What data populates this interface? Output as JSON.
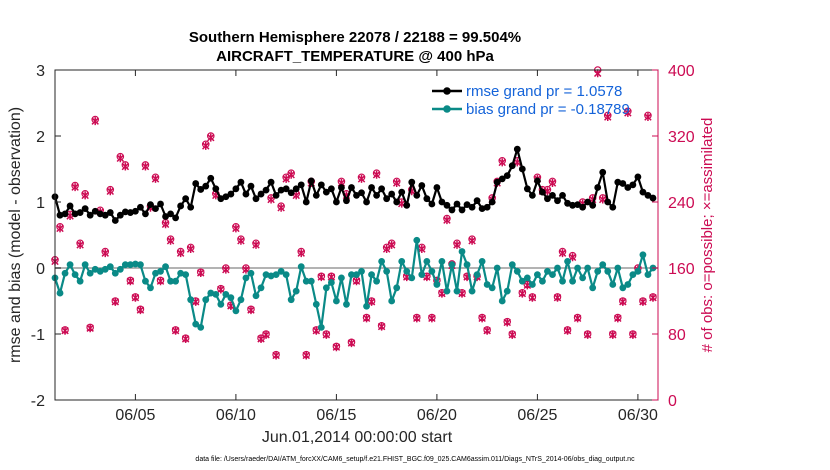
{
  "chart_data": {
    "type": "line",
    "title_line1": "Southern Hemisphere 22078 / 22188 = 99.504%",
    "title_line2": "AIRCRAFT_TEMPERATURE @ 400 hPa",
    "xlabel": "Jun.01,2014 00:00:00 start",
    "ylabel": "rmse and bias (model - observation)",
    "y2label": "# of obs: o=possible; ×=assimilated",
    "xlim": [
      1,
      31
    ],
    "ylim": [
      -2,
      3
    ],
    "y2lim": [
      0,
      400
    ],
    "x_ticks": [
      5,
      10,
      15,
      20,
      25,
      30
    ],
    "x_tick_labels": [
      "06/05",
      "06/10",
      "06/15",
      "06/20",
      "06/25",
      "06/30"
    ],
    "y_ticks": [
      -2,
      -1,
      0,
      1,
      2,
      3
    ],
    "y_tick_labels": [
      "-2",
      "-1",
      "0",
      "1",
      "2",
      "3"
    ],
    "y2_ticks": [
      0,
      80,
      160,
      240,
      320,
      400
    ],
    "y2_tick_labels": [
      "0",
      "80",
      "160",
      "240",
      "320",
      "400"
    ],
    "footnote": "data file: /Users/raeder/DAI/ATM_forcXX/CAM6_setup/f.e21.FHIST_BGC.f09_025.CAM6assim.011/Diags_NTrS_2014-06/obs_diag_output.nc",
    "series": [
      {
        "name": "rmse grand pr = 1.0578",
        "color": "#000000",
        "x": [
          1.0,
          1.25,
          1.5,
          1.75,
          2.0,
          2.25,
          2.5,
          2.75,
          3.0,
          3.25,
          3.5,
          3.75,
          4.0,
          4.25,
          4.5,
          4.75,
          5.0,
          5.25,
          5.5,
          5.75,
          6.0,
          6.25,
          6.5,
          6.75,
          7.0,
          7.25,
          7.5,
          7.75,
          8.0,
          8.25,
          8.5,
          8.75,
          9.0,
          9.25,
          9.5,
          9.75,
          10.0,
          10.25,
          10.5,
          10.75,
          11.0,
          11.25,
          11.5,
          11.75,
          12.0,
          12.25,
          12.5,
          12.75,
          13.0,
          13.25,
          13.5,
          13.75,
          14.0,
          14.25,
          14.5,
          14.75,
          15.0,
          15.25,
          15.5,
          15.75,
          16.0,
          16.25,
          16.5,
          16.75,
          17.0,
          17.25,
          17.5,
          17.75,
          18.0,
          18.25,
          18.5,
          18.75,
          19.0,
          19.25,
          19.5,
          19.75,
          20.0,
          20.25,
          20.5,
          20.75,
          21.0,
          21.25,
          21.5,
          21.75,
          22.0,
          22.25,
          22.5,
          22.75,
          23.0,
          23.25,
          23.5,
          23.75,
          24.0,
          24.25,
          24.5,
          24.75,
          25.0,
          25.25,
          25.5,
          25.75,
          26.0,
          26.25,
          26.5,
          26.75,
          27.0,
          27.25,
          27.5,
          27.75,
          28.0,
          28.25,
          28.5,
          28.75,
          29.0,
          29.25,
          29.5,
          29.75,
          30.0,
          30.25,
          30.5,
          30.75
        ],
        "values": [
          1.08,
          0.8,
          0.82,
          0.94,
          0.82,
          0.84,
          0.9,
          0.8,
          0.86,
          0.82,
          0.8,
          0.84,
          0.72,
          0.8,
          0.85,
          0.84,
          0.86,
          0.92,
          0.82,
          0.96,
          0.9,
          0.97,
          0.78,
          0.82,
          0.76,
          0.94,
          1.05,
          0.92,
          1.28,
          1.19,
          1.24,
          1.36,
          1.2,
          1.05,
          1.08,
          1.12,
          1.2,
          1.3,
          1.12,
          1.24,
          1.05,
          1.12,
          1.18,
          1.3,
          1.1,
          1.18,
          1.2,
          1.14,
          1.2,
          1.26,
          1.0,
          1.32,
          1.1,
          1.26,
          1.15,
          1.2,
          1.0,
          1.22,
          1.02,
          1.22,
          1.1,
          1.14,
          1.0,
          1.22,
          1.1,
          1.2,
          1.05,
          1.12,
          1.0,
          1.15,
          0.95,
          1.3,
          1.1,
          1.25,
          1.05,
          0.97,
          1.22,
          1.0,
          0.95,
          0.88,
          0.97,
          0.88,
          0.96,
          0.92,
          1.02,
          0.9,
          0.92,
          1.0,
          1.3,
          1.35,
          1.4,
          1.55,
          1.8,
          1.5,
          1.2,
          1.1,
          1.32,
          1.15,
          1.05,
          1.1,
          1.02,
          1.1,
          0.98,
          0.95,
          0.96,
          0.92,
          1.0,
          0.95,
          1.22,
          1.45,
          1.0,
          0.92,
          1.3,
          1.28,
          1.22,
          1.26,
          1.38,
          1.15,
          1.1,
          1.06
        ]
      },
      {
        "name": "bias grand pr = -0.18789",
        "color": "#0a8a87",
        "x": [
          1.0,
          1.25,
          1.5,
          1.75,
          2.0,
          2.25,
          2.5,
          2.75,
          3.0,
          3.25,
          3.5,
          3.75,
          4.0,
          4.25,
          4.5,
          4.75,
          5.0,
          5.25,
          5.5,
          5.75,
          6.0,
          6.25,
          6.5,
          6.75,
          7.0,
          7.25,
          7.5,
          7.75,
          8.0,
          8.25,
          8.5,
          8.75,
          9.0,
          9.25,
          9.5,
          9.75,
          10.0,
          10.25,
          10.5,
          10.75,
          11.0,
          11.25,
          11.5,
          11.75,
          12.0,
          12.25,
          12.5,
          12.75,
          13.0,
          13.25,
          13.5,
          13.75,
          14.0,
          14.25,
          14.5,
          14.75,
          15.0,
          15.25,
          15.5,
          15.75,
          16.0,
          16.25,
          16.5,
          16.75,
          17.0,
          17.25,
          17.5,
          17.75,
          18.0,
          18.25,
          18.5,
          18.75,
          19.0,
          19.25,
          19.5,
          19.75,
          20.0,
          20.25,
          20.5,
          20.75,
          21.0,
          21.25,
          21.5,
          21.75,
          22.0,
          22.25,
          22.5,
          22.75,
          23.0,
          23.25,
          23.5,
          23.75,
          24.0,
          24.25,
          24.5,
          24.75,
          25.0,
          25.25,
          25.5,
          25.75,
          26.0,
          26.25,
          26.5,
          26.75,
          27.0,
          27.25,
          27.5,
          27.75,
          28.0,
          28.25,
          28.5,
          28.75,
          29.0,
          29.25,
          29.5,
          29.75,
          30.0,
          30.25,
          30.5,
          30.75
        ],
        "values": [
          -0.15,
          -0.38,
          -0.08,
          0.05,
          -0.1,
          -0.2,
          0.05,
          -0.08,
          -0.02,
          -0.05,
          -0.02,
          0.02,
          -0.08,
          -0.02,
          0.05,
          0.05,
          0.06,
          0.05,
          -0.2,
          -0.3,
          -0.08,
          -0.05,
          0.02,
          -0.2,
          -0.2,
          -0.08,
          -0.1,
          -0.48,
          -0.85,
          -0.9,
          -0.48,
          -0.38,
          -0.4,
          -0.55,
          -0.4,
          -0.45,
          -0.65,
          -0.48,
          -0.15,
          -0.08,
          -0.42,
          -0.3,
          -0.1,
          -0.12,
          -0.1,
          -0.05,
          -0.1,
          -0.48,
          -0.35,
          0.02,
          -0.2,
          -0.2,
          -0.55,
          -0.9,
          -0.3,
          -0.22,
          -0.5,
          -0.15,
          -0.55,
          -0.1,
          -0.1,
          -0.05,
          -0.58,
          -0.1,
          -0.2,
          0.1,
          -0.05,
          -0.5,
          -0.3,
          0.1,
          -0.05,
          -0.15,
          0.42,
          -0.1,
          0.1,
          -0.05,
          -0.25,
          0.1,
          -0.35,
          0.05,
          -0.35,
          0.25,
          0.05,
          -0.35,
          -0.1,
          0.1,
          -0.25,
          -0.3,
          0.0,
          -0.5,
          -0.35,
          0.05,
          -0.05,
          -0.2,
          -0.15,
          -0.25,
          -0.1,
          -0.2,
          -0.05,
          -0.1,
          0.0,
          -0.2,
          0.1,
          -0.2,
          0.0,
          -0.15,
          0.0,
          -0.3,
          -0.05,
          0.05,
          -0.05,
          -0.25,
          0.0,
          -0.3,
          -0.25,
          -0.1,
          -0.05,
          0.2,
          -0.1,
          0.0
        ]
      }
    ],
    "obs_possible": {
      "name": "possible",
      "marker": "o",
      "color": "#cc0b53",
      "x": [
        1.0,
        1.25,
        1.5,
        1.75,
        2.0,
        2.25,
        2.5,
        2.75,
        3.0,
        3.25,
        3.5,
        3.75,
        4.0,
        4.25,
        4.5,
        4.75,
        5.0,
        5.25,
        5.5,
        5.75,
        6.0,
        6.25,
        6.5,
        6.75,
        7.0,
        7.25,
        7.5,
        7.75,
        8.0,
        8.25,
        8.5,
        8.75,
        9.0,
        9.25,
        9.5,
        9.75,
        10.0,
        10.25,
        10.5,
        10.75,
        11.0,
        11.25,
        11.5,
        11.75,
        12.0,
        12.25,
        12.5,
        12.75,
        13.0,
        13.25,
        13.5,
        13.75,
        14.0,
        14.25,
        14.5,
        14.75,
        15.0,
        15.25,
        15.5,
        15.75,
        16.0,
        16.25,
        16.5,
        16.75,
        17.0,
        17.25,
        17.5,
        17.75,
        18.0,
        18.25,
        18.5,
        18.75,
        19.0,
        19.25,
        19.5,
        19.75,
        20.0,
        20.25,
        20.5,
        20.75,
        21.0,
        21.25,
        21.5,
        21.75,
        22.0,
        22.25,
        22.5,
        22.75,
        23.0,
        23.25,
        23.5,
        23.75,
        24.0,
        24.25,
        24.5,
        24.75,
        25.0,
        25.25,
        25.5,
        25.75,
        26.0,
        26.25,
        26.5,
        26.75,
        27.0,
        27.25,
        27.5,
        27.75,
        28.0,
        28.25,
        28.5,
        28.75,
        29.0,
        29.25,
        29.5,
        29.75,
        30.0,
        30.25,
        30.5,
        30.75
      ],
      "values": [
        170,
        210,
        85,
        225,
        260,
        190,
        250,
        88,
        340,
        230,
        180,
        255,
        120,
        295,
        285,
        145,
        125,
        110,
        285,
        235,
        270,
        145,
        215,
        195,
        85,
        180,
        75,
        185,
        120,
        155,
        310,
        320,
        250,
        135,
        160,
        115,
        210,
        195,
        160,
        110,
        190,
        75,
        80,
        245,
        55,
        235,
        270,
        275,
        250,
        180,
        55,
        265,
        85,
        150,
        80,
        150,
        65,
        265,
        250,
        70,
        145,
        270,
        100,
        120,
        275,
        90,
        185,
        190,
        265,
        240,
        150,
        255,
        100,
        185,
        150,
        100,
        145,
        130,
        220,
        165,
        190,
        130,
        150,
        195,
        150,
        100,
        85,
        245,
        265,
        290,
        95,
        80,
        290,
        130,
        140,
        125,
        270,
        255,
        255,
        265,
        125,
        180,
        85,
        175,
        100,
        240,
        80,
        245,
        400,
        245,
        345,
        80,
        100,
        120,
        350,
        80,
        160,
        120,
        345,
        125
      ]
    },
    "obs_assimilated": {
      "name": "assimilated",
      "marker": "x",
      "color": "#cc0b53",
      "x": [
        1.0,
        1.25,
        1.5,
        1.75,
        2.0,
        2.25,
        2.5,
        2.75,
        3.0,
        3.25,
        3.5,
        3.75,
        4.0,
        4.25,
        4.5,
        4.75,
        5.0,
        5.25,
        5.5,
        5.75,
        6.0,
        6.25,
        6.5,
        6.75,
        7.0,
        7.25,
        7.5,
        7.75,
        8.0,
        8.25,
        8.5,
        8.75,
        9.0,
        9.25,
        9.5,
        9.75,
        10.0,
        10.25,
        10.5,
        10.75,
        11.0,
        11.25,
        11.5,
        11.75,
        12.0,
        12.25,
        12.5,
        12.75,
        13.0,
        13.25,
        13.5,
        13.75,
        14.0,
        14.25,
        14.5,
        14.75,
        15.0,
        15.25,
        15.5,
        15.75,
        16.0,
        16.25,
        16.5,
        16.75,
        17.0,
        17.25,
        17.5,
        17.75,
        18.0,
        18.25,
        18.5,
        18.75,
        19.0,
        19.25,
        19.5,
        19.75,
        20.0,
        20.25,
        20.5,
        20.75,
        21.0,
        21.25,
        21.5,
        21.75,
        22.0,
        22.25,
        22.5,
        22.75,
        23.0,
        23.25,
        23.5,
        23.75,
        24.0,
        24.25,
        24.5,
        24.75,
        25.0,
        25.25,
        25.5,
        25.75,
        26.0,
        26.25,
        26.5,
        26.75,
        27.0,
        27.25,
        27.5,
        27.75,
        28.0,
        28.25,
        28.5,
        28.75,
        29.0,
        29.25,
        29.5,
        29.75,
        30.0,
        30.25,
        30.5,
        30.75
      ],
      "values": [
        168,
        208,
        84,
        223,
        258,
        188,
        248,
        87,
        338,
        228,
        178,
        253,
        119,
        293,
        283,
        144,
        124,
        109,
        283,
        233,
        268,
        144,
        213,
        193,
        84,
        178,
        74,
        183,
        119,
        154,
        308,
        318,
        248,
        134,
        158,
        114,
        208,
        193,
        158,
        109,
        188,
        74,
        79,
        243,
        54,
        233,
        268,
        273,
        248,
        178,
        54,
        263,
        84,
        149,
        79,
        149,
        64,
        263,
        248,
        69,
        144,
        268,
        99,
        119,
        273,
        89,
        183,
        188,
        263,
        238,
        149,
        253,
        99,
        183,
        149,
        99,
        144,
        129,
        218,
        163,
        188,
        129,
        149,
        193,
        149,
        99,
        84,
        243,
        263,
        288,
        94,
        79,
        288,
        129,
        139,
        124,
        268,
        253,
        253,
        263,
        124,
        178,
        84,
        173,
        99,
        238,
        79,
        243,
        396,
        243,
        343,
        79,
        99,
        119,
        348,
        79,
        158,
        119,
        343,
        124
      ]
    }
  }
}
